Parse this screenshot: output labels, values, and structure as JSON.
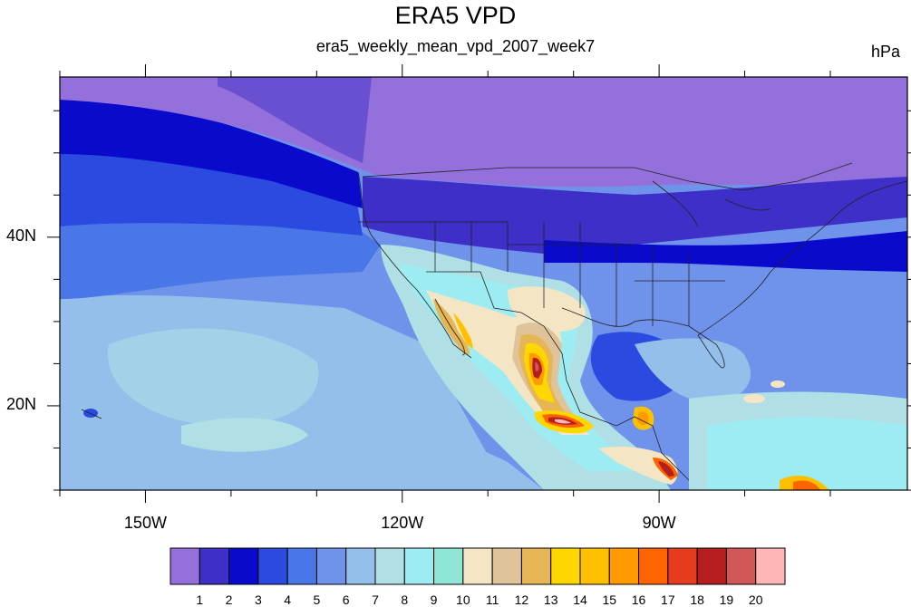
{
  "figure": {
    "title": "ERA5 VPD",
    "subtitle": "era5_weekly_mean_vpd_2007_week7",
    "units": "hPa"
  },
  "map": {
    "lon_range": [
      -160,
      -61
    ],
    "lat_range": [
      10,
      59
    ],
    "lon_ticks": [
      {
        "value": -150,
        "label": "150W"
      },
      {
        "value": -120,
        "label": "120W"
      },
      {
        "value": -90,
        "label": "90W"
      }
    ],
    "lat_ticks": [
      {
        "value": 40,
        "label": "40N"
      },
      {
        "value": 20,
        "label": "20N"
      }
    ],
    "lon_minor_step": 10,
    "lat_minor_step": 5
  },
  "colorbar": {
    "labels": [
      "1",
      "2",
      "3",
      "4",
      "5",
      "6",
      "7",
      "8",
      "9",
      "10",
      "11",
      "12",
      "13",
      "14",
      "15",
      "16",
      "17",
      "18",
      "19",
      "20"
    ],
    "colors": [
      "#9370db",
      "#3d2fc8",
      "#0a0acd",
      "#2b4ae0",
      "#4a77e8",
      "#6f93ea",
      "#93bfea",
      "#b0e0e6",
      "#9cecf2",
      "#8fe6d6",
      "#f4e6c4",
      "#dfc39a",
      "#e6b655",
      "#ffd700",
      "#ffc000",
      "#ff9a00",
      "#ff6400",
      "#e63c1e",
      "#b41e1e",
      "#d05858",
      "#ffb6b6"
    ]
  }
}
